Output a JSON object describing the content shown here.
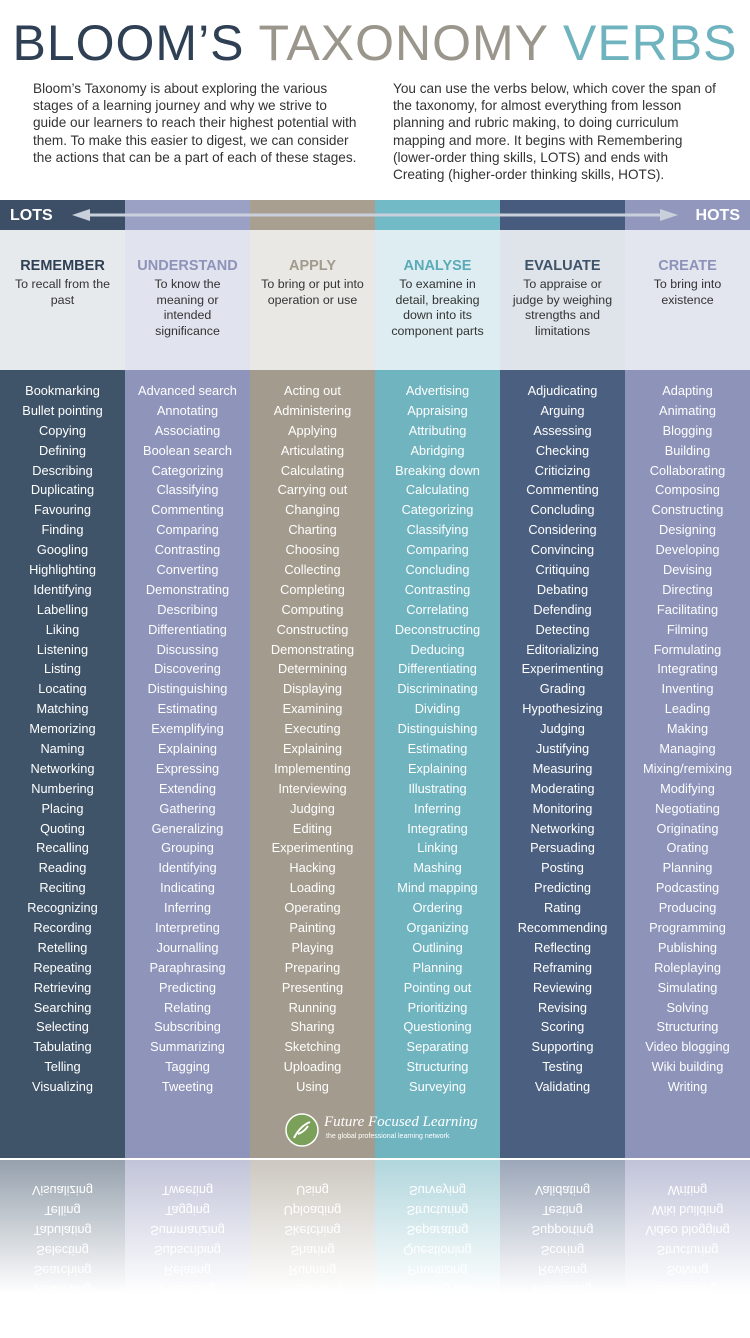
{
  "header": {
    "title": [
      "BLOOM’S",
      "TAXONOMY",
      "VERBS"
    ],
    "intro": [
      "Bloom’s Taxonomy is about exploring the various stages of a learning journey and why we strive to guide our learners to reach their highest potential with them. To make this easier to digest, we can consider the actions that can be a part of each of these stages.",
      "You can use the verbs below, which cover the span of the taxonomy, for almost everything from lesson planning and rubric making, to doing curriculum mapping and more. It begins with Remembering (lower-order thing skills, LOTS) and ends with Creating (higher-order thinking skills, HOTS)."
    ]
  },
  "scale": {
    "low": "LOTS",
    "high": "HOTS"
  },
  "columns": [
    {
      "name": "REMEMBER",
      "definition": "To recall from the past",
      "verbs": [
        "Bookmarking",
        "Bullet pointing",
        "Copying",
        "Defining",
        "Describing",
        "Duplicating",
        "Favouring",
        "Finding",
        "Googling",
        "Highlighting",
        "Identifying",
        "Labelling",
        "Liking",
        "Listening",
        "Listing",
        "Locating",
        "Matching",
        "Memorizing",
        "Naming",
        "Networking",
        "Numbering",
        "Placing",
        "Quoting",
        "Recalling",
        "Reading",
        "Reciting",
        "Recognizing",
        "Recording",
        "Retelling",
        "Repeating",
        "Retrieving",
        "Searching",
        "Selecting",
        "Tabulating",
        "Telling",
        "Visualizing"
      ]
    },
    {
      "name": "UNDERSTAND",
      "definition": "To know the meaning or intended significance",
      "verbs": [
        "Advanced search",
        "Annotating",
        "Associating",
        "Boolean search",
        "Categorizing",
        "Classifying",
        "Commenting",
        "Comparing",
        "Contrasting",
        "Converting",
        "Demonstrating",
        "Describing",
        "Differentiating",
        "Discussing",
        "Discovering",
        "Distinguishing",
        "Estimating",
        "Exemplifying",
        "Explaining",
        "Expressing",
        "Extending",
        "Gathering",
        "Generalizing",
        "Grouping",
        "Identifying",
        "Indicating",
        "Inferring",
        "Interpreting",
        "Journalling",
        "Paraphrasing",
        "Predicting",
        "Relating",
        "Subscribing",
        "Summarizing",
        "Tagging",
        "Tweeting"
      ]
    },
    {
      "name": "APPLY",
      "definition": "To bring or put into operation or use",
      "verbs": [
        "Acting out",
        "Administering",
        "Applying",
        "Articulating",
        "Calculating",
        "Carrying out",
        "Changing",
        "Charting",
        "Choosing",
        "Collecting",
        "Completing",
        "Computing",
        "Constructing",
        "Demonstrating",
        "Determining",
        "Displaying",
        "Examining",
        "Executing",
        "Explaining",
        "Implementing",
        "Interviewing",
        "Judging",
        "Editing",
        "Experimenting",
        "Hacking",
        "Loading",
        "Operating",
        "Painting",
        "Playing",
        "Preparing",
        "Presenting",
        "Running",
        "Sharing",
        "Sketching",
        "Uploading",
        "Using"
      ]
    },
    {
      "name": "ANALYSE",
      "definition": "To examine in detail, breaking down into its component parts",
      "verbs": [
        "Advertising",
        "Appraising",
        "Attributing",
        "Abridging",
        "Breaking down",
        "Calculating",
        "Categorizing",
        "Classifying",
        "Comparing",
        "Concluding",
        "Contrasting",
        "Correlating",
        "Deconstructing",
        "Deducing",
        "Differentiating",
        "Discriminating",
        "Dividing",
        "Distinguishing",
        "Estimating",
        "Explaining",
        "Illustrating",
        "Inferring",
        "Integrating",
        "Linking",
        "Mashing",
        "Mind mapping",
        "Ordering",
        "Organizing",
        "Outlining",
        "Planning",
        "Pointing out",
        "Prioritizing",
        "Questioning",
        "Separating",
        "Structuring",
        "Surveying"
      ]
    },
    {
      "name": "EVALUATE",
      "definition": "To appraise or judge by weighing strengths and limitations",
      "verbs": [
        "Adjudicating",
        "Arguing",
        "Assessing",
        "Checking",
        "Criticizing",
        "Commenting",
        "Concluding",
        "Considering",
        "Convincing",
        "Critiquing",
        "Debating",
        "Defending",
        "Detecting",
        "Editorializing",
        "Experimenting",
        "Grading",
        "Hypothesizing",
        "Judging",
        "Justifying",
        "Measuring",
        "Moderating",
        "Monitoring",
        "Networking",
        "Persuading",
        "Posting",
        "Predicting",
        "Rating",
        "Recommending",
        "Reflecting",
        "Reframing",
        "Reviewing",
        "Revising",
        "Scoring",
        "Supporting",
        "Testing",
        "Validating"
      ]
    },
    {
      "name": "CREATE",
      "definition": "To bring into existence",
      "verbs": [
        "Adapting",
        "Animating",
        "Blogging",
        "Building",
        "Collaborating",
        "Composing",
        "Constructing",
        "Designing",
        "Developing",
        "Devising",
        "Directing",
        "Facilitating",
        "Filming",
        "Formulating",
        "Integrating",
        "Inventing",
        "Leading",
        "Making",
        "Managing",
        "Mixing/remixing",
        "Modifying",
        "Negotiating",
        "Originating",
        "Orating",
        "Planning",
        "Podcasting",
        "Producing",
        "Programming",
        "Publishing",
        "Roleplaying",
        "Simulating",
        "Solving",
        "Structuring",
        "Video blogging",
        "Wiki building",
        "Writing"
      ]
    }
  ],
  "footer": {
    "logo_name": "Future Focused Learning",
    "logo_tagline": "the global professional learning network"
  }
}
